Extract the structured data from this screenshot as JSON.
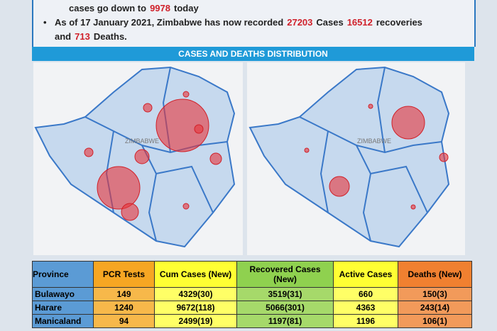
{
  "bullets": [
    {
      "segments": [
        {
          "text": "cases go down to",
          "highlight": false
        },
        {
          "text": "9978",
          "highlight": true
        },
        {
          "text": "today",
          "highlight": false
        }
      ]
    },
    {
      "segments": [
        {
          "text": "As of 17 January 2021, Zimbabwe has now recorded",
          "highlight": false
        },
        {
          "text": "27203",
          "highlight": true
        },
        {
          "text": "Cases",
          "highlight": false
        },
        {
          "text": "16512",
          "highlight": true
        },
        {
          "text": "recoveries and",
          "highlight": false
        },
        {
          "text": "713",
          "highlight": true
        },
        {
          "text": "Deaths.",
          "highlight": false
        }
      ]
    }
  ],
  "section_title": "CASES AND DEATHS DISTRIBUTION",
  "maps": [
    {
      "label": "ZIMBABWE"
    },
    {
      "label": "ZIMBABWE"
    }
  ],
  "table": {
    "header": [
      "Province",
      "PCR Tests",
      "Cum Cases (New)",
      "Recovered Cases (New)",
      "Active Cases",
      "Deaths (New)"
    ],
    "rows": [
      [
        "Bulawayo",
        "149",
        "4329(30)",
        "3519(31)",
        "660",
        "150(3)"
      ],
      [
        "Harare",
        "1240",
        "9672(118)",
        "5066(301)",
        "4363",
        "243(14)"
      ],
      [
        "Manicaland",
        "94",
        "2499(19)",
        "1197(81)",
        "1196",
        "106(1)"
      ]
    ]
  }
}
